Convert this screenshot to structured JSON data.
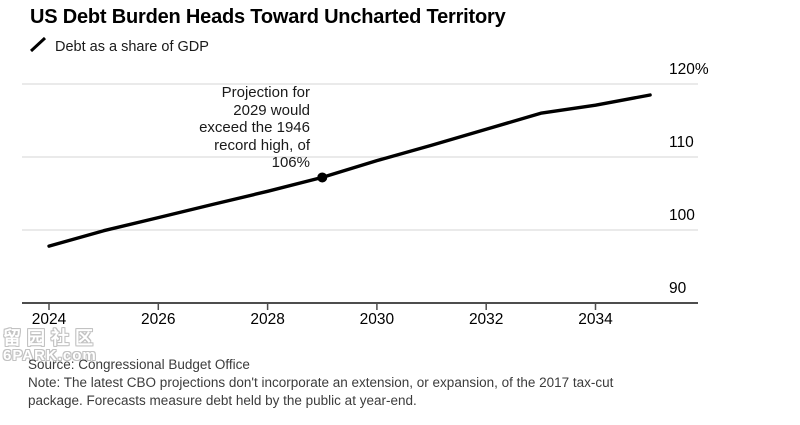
{
  "header": {
    "title": "US Debt Burden Heads Toward Uncharted Territory",
    "legend": {
      "icon": "line-series-icon",
      "label": "Debt as a share of GDP",
      "series_color": "#000000"
    }
  },
  "annotation": {
    "text": "Projection for\n2029 would\nexceed the 1946\nrecord high, of\n106%"
  },
  "footer": {
    "source": "Source: Congressional Budget Office",
    "note": "Note: The latest CBO projections don't incorporate an extension, or expansion, of the 2017 tax-cut\npackage. Forecasts measure debt held by the public at year-end."
  },
  "watermark": {
    "line1": "留园社区",
    "line2": "6PARK.com"
  },
  "chart_data": {
    "type": "line",
    "title": "US Debt Burden Heads Toward Uncharted Territory",
    "series": [
      {
        "name": "Debt as a share of GDP",
        "x": [
          2024,
          2025,
          2026,
          2027,
          2028,
          2029,
          2030,
          2031,
          2032,
          2033,
          2034,
          2035
        ],
        "values": [
          97.8,
          99.9,
          101.7,
          103.5,
          105.3,
          107.2,
          109.5,
          111.6,
          113.8,
          116.0,
          117.1,
          118.5
        ]
      }
    ],
    "highlight_point": {
      "x": 2029,
      "y": 107.2,
      "note": "Projection for 2029 would exceed the 1946 record high, of 106%"
    },
    "xlabel": "",
    "ylabel": "",
    "xlim": [
      2024,
      2035.3
    ],
    "ylim": [
      90,
      120
    ],
    "x_ticks": [
      2024,
      2026,
      2028,
      2030,
      2032,
      2034
    ],
    "y_ticks": [
      {
        "value": 120,
        "label": "120%"
      },
      {
        "value": 110,
        "label": "110"
      },
      {
        "value": 100,
        "label": "100"
      },
      {
        "value": 90,
        "label": "90"
      }
    ],
    "grid": true,
    "legend_position": "top-left",
    "line_color": "#000000",
    "grid_color": "#d6d6d6",
    "axis_color": "#4d4d4d"
  }
}
